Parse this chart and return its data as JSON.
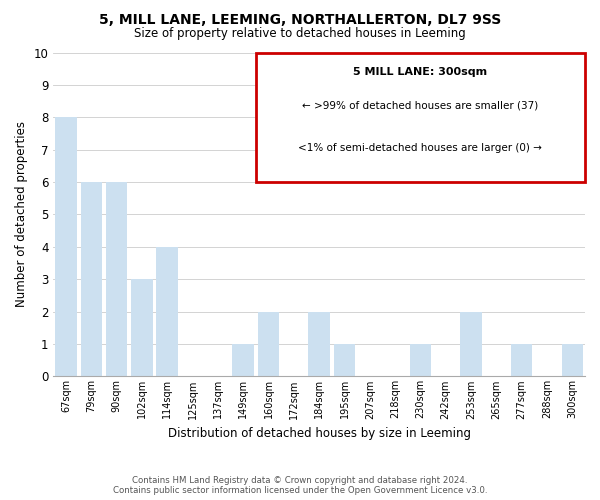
{
  "title": "5, MILL LANE, LEEMING, NORTHALLERTON, DL7 9SS",
  "subtitle": "Size of property relative to detached houses in Leeming",
  "xlabel": "Distribution of detached houses by size in Leeming",
  "ylabel": "Number of detached properties",
  "categories": [
    "67sqm",
    "79sqm",
    "90sqm",
    "102sqm",
    "114sqm",
    "125sqm",
    "137sqm",
    "149sqm",
    "160sqm",
    "172sqm",
    "184sqm",
    "195sqm",
    "207sqm",
    "218sqm",
    "230sqm",
    "242sqm",
    "253sqm",
    "265sqm",
    "277sqm",
    "288sqm",
    "300sqm"
  ],
  "values": [
    8,
    6,
    6,
    3,
    4,
    0,
    0,
    1,
    2,
    0,
    2,
    1,
    0,
    0,
    1,
    0,
    2,
    0,
    1,
    0,
    1
  ],
  "bar_color": "#cce0f0",
  "red_box_text_line1": "5 MILL LANE: 300sqm",
  "red_box_text_line2": "← >99% of detached houses are smaller (37)",
  "red_box_text_line3": "<1% of semi-detached houses are larger (0) →",
  "ylim": [
    0,
    10
  ],
  "yticks": [
    0,
    1,
    2,
    3,
    4,
    5,
    6,
    7,
    8,
    9,
    10
  ],
  "footer_line1": "Contains HM Land Registry data © Crown copyright and database right 2024.",
  "footer_line2": "Contains public sector information licensed under the Open Government Licence v3.0.",
  "background_color": "#ffffff",
  "grid_color": "#cccccc"
}
